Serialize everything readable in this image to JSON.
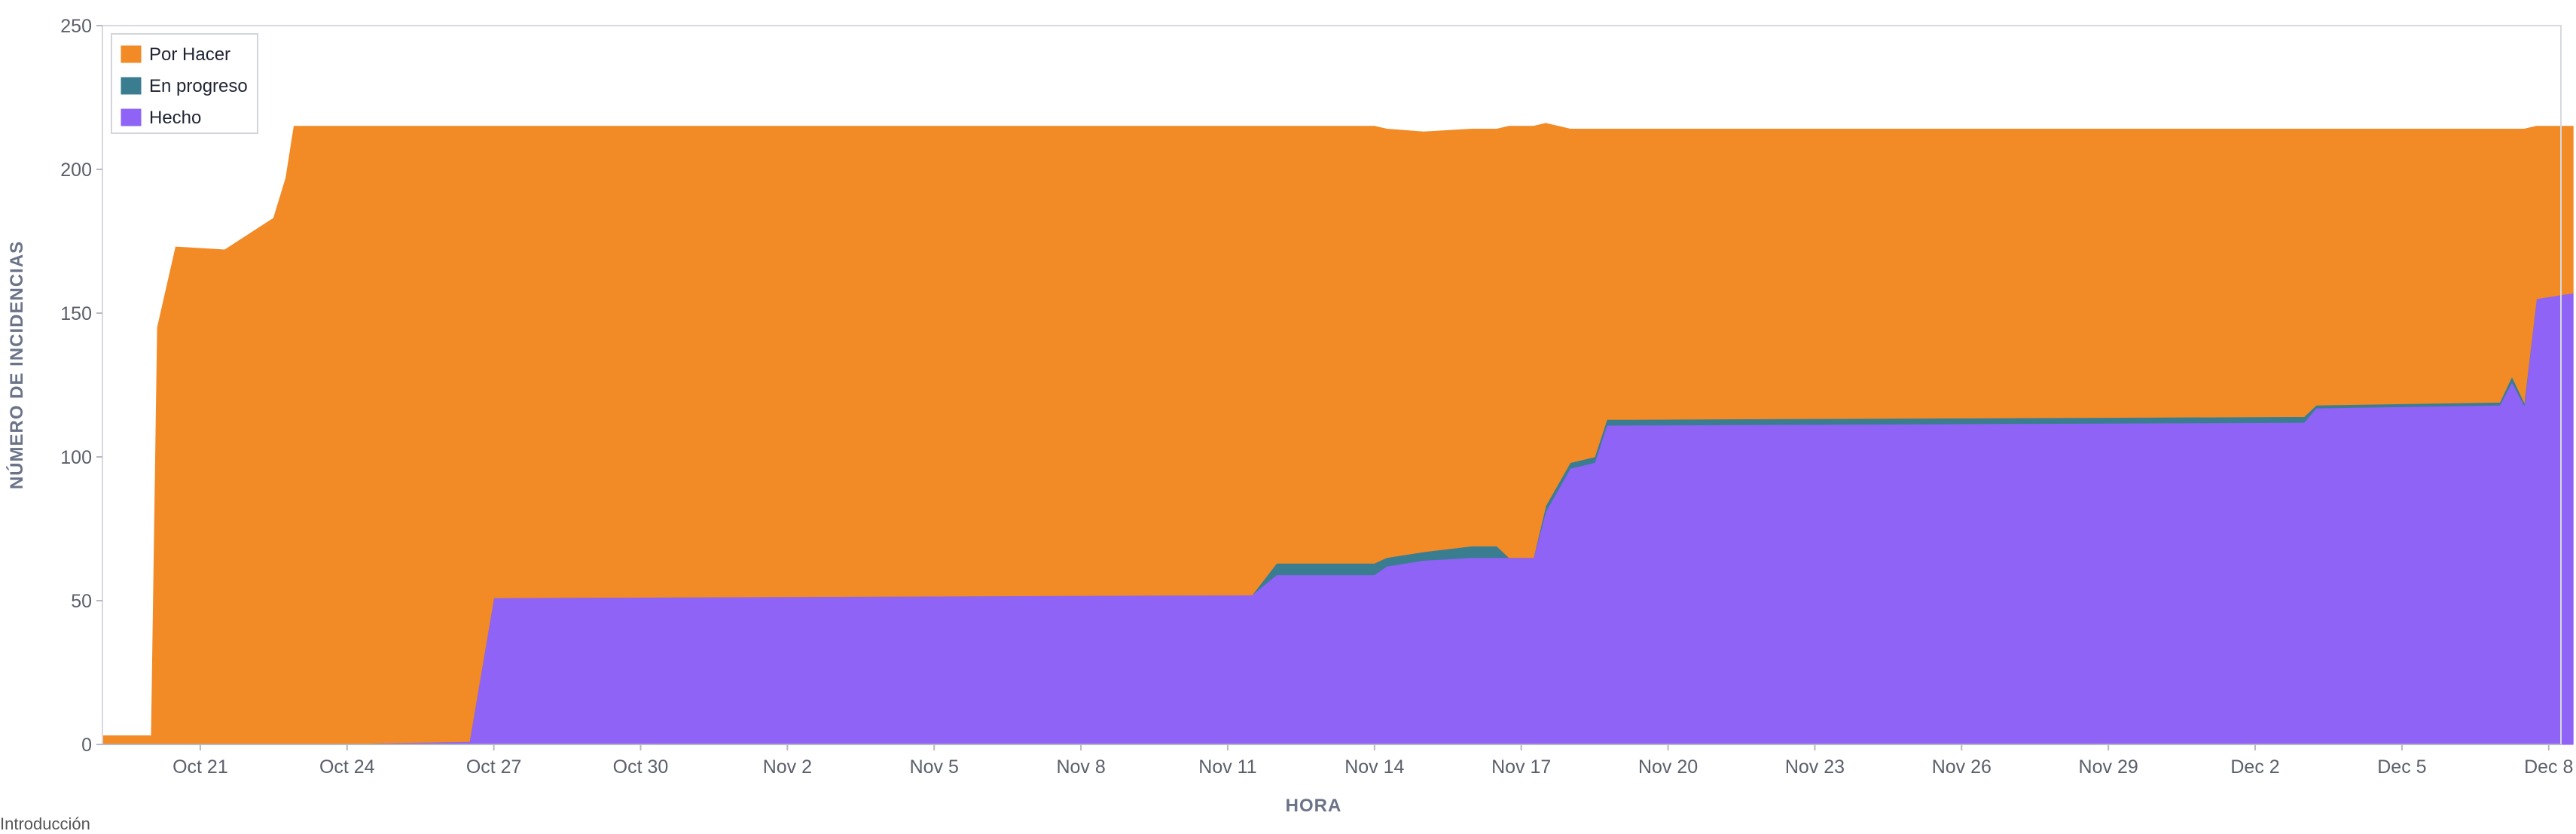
{
  "chart_data": {
    "type": "area",
    "stacked": true,
    "xlabel": "HORA",
    "ylabel": "NÚMERO DE INCIDENCIAS",
    "ylim": [
      0,
      250
    ],
    "yticks": [
      0,
      50,
      100,
      150,
      200,
      250
    ],
    "x_start": "Oct 19",
    "x_end": "Dec 8",
    "xtick_labels": [
      "Oct 21",
      "Oct 24",
      "Oct 27",
      "Oct 30",
      "Nov 2",
      "Nov 5",
      "Nov 8",
      "Nov 11",
      "Nov 14",
      "Nov 17",
      "Nov 20",
      "Nov 23",
      "Nov 26",
      "Nov 29",
      "Dec 2",
      "Dec 5",
      "Dec 8"
    ],
    "grid": false,
    "legend_position": "top-left",
    "x": [
      "Oct 19 00:00",
      "Oct 20 00:00",
      "Oct 20 03:00",
      "Oct 20 12:00",
      "Oct 21 12:00",
      "Oct 22 12:00",
      "Oct 22 18:00",
      "Oct 22 22:00",
      "Oct 26 12:00",
      "Oct 27 00:00",
      "Nov 11 12:00",
      "Nov 12 00:00",
      "Nov 14 00:00",
      "Nov 14 06:00",
      "Nov 15 00:00",
      "Nov 16 00:00",
      "Nov 16 12:00",
      "Nov 16 18:00",
      "Nov 17 06:00",
      "Nov 17 12:00",
      "Nov 18 00:00",
      "Nov 18 12:00",
      "Nov 18 18:00",
      "Dec 3 00:00",
      "Dec 3 06:00",
      "Dec 7 00:00",
      "Dec 7 06:00",
      "Dec 7 12:00",
      "Dec 7 18:00",
      "Dec 8 12:00"
    ],
    "series": [
      {
        "name": "Por Hacer",
        "color": "#f28a26",
        "values": [
          3,
          3,
          145,
          173,
          172,
          183,
          197,
          215,
          214,
          164,
          163,
          152,
          152,
          149,
          146,
          145,
          145,
          150,
          150,
          133,
          116,
          114,
          101,
          100,
          96,
          95,
          86,
          95,
          60,
          58
        ]
      },
      {
        "name": "En progreso",
        "color": "#3a7d91",
        "values": [
          0,
          0,
          0,
          0,
          0,
          0,
          0,
          0,
          0,
          0,
          0,
          4,
          4,
          3,
          3,
          4,
          4,
          0,
          0,
          2,
          2,
          2,
          2,
          2,
          1,
          1,
          2,
          1,
          0,
          0
        ]
      },
      {
        "name": "Hecho",
        "color": "#8f63f5",
        "values": [
          0,
          0,
          0,
          0,
          0,
          0,
          0,
          0,
          1,
          51,
          52,
          59,
          59,
          62,
          64,
          65,
          65,
          65,
          65,
          81,
          96,
          98,
          111,
          112,
          117,
          118,
          126,
          118,
          155,
          157
        ]
      }
    ]
  },
  "footnote": "Introducción"
}
